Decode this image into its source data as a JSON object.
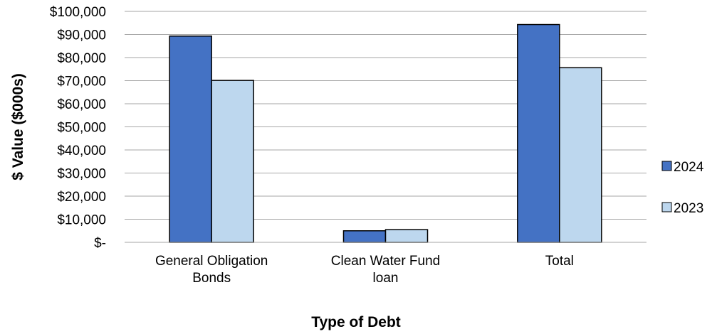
{
  "chart_data": {
    "type": "bar",
    "title": "",
    "xlabel": "Type of Debt",
    "ylabel": "$ Value ($000s)",
    "ylim": [
      0,
      100000
    ],
    "y_ticks": [
      "$-",
      "$10,000",
      "$20,000",
      "$30,000",
      "$40,000",
      "$50,000",
      "$60,000",
      "$70,000",
      "$80,000",
      "$90,000",
      "$100,000"
    ],
    "categories": [
      [
        "General Obligation",
        "Bonds"
      ],
      [
        "Clean Water Fund",
        "loan"
      ],
      [
        "Total"
      ]
    ],
    "series": [
      {
        "name": "2024",
        "color": "#4472c4",
        "values": [
          89300,
          5000,
          94300
        ]
      },
      {
        "name": "2023",
        "color": "#bdd7ee",
        "values": [
          70100,
          5500,
          75600
        ]
      }
    ],
    "grid": true,
    "legend_position": "right"
  }
}
